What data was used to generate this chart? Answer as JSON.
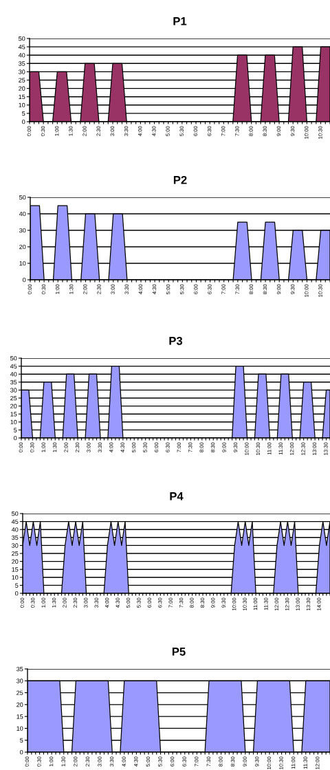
{
  "chart_data": [
    {
      "type": "area",
      "title": "P1",
      "grid": "y",
      "ylim": [
        0,
        50
      ],
      "yticks": [
        0,
        5,
        10,
        15,
        20,
        25,
        30,
        35,
        40,
        45,
        50
      ],
      "categories": [
        "0:00",
        null,
        null,
        "0:30",
        null,
        null,
        "1:00",
        null,
        null,
        "1:30",
        null,
        null,
        "2:00",
        null,
        null,
        "2:30",
        null,
        null,
        "3:00",
        null,
        null,
        "3:30",
        null,
        null,
        "4:00",
        null,
        null,
        "4:30",
        null,
        null,
        "5:00",
        null,
        null,
        "5:30",
        null,
        null,
        "6:00",
        null,
        null,
        "6:30",
        null,
        null,
        "7:00",
        null,
        null,
        "7:30",
        null,
        null,
        "8:00",
        null,
        null,
        "8:30",
        null,
        null,
        "9:00",
        null,
        null,
        "9:30",
        null,
        null,
        "10:00",
        null,
        null,
        "10:30",
        null,
        null
      ],
      "series": [
        {
          "color": "#993366",
          "values": [
            30,
            30,
            30,
            0,
            0,
            0,
            30,
            30,
            30,
            0,
            0,
            0,
            35,
            35,
            35,
            0,
            0,
            0,
            35,
            35,
            35,
            0,
            0,
            0,
            0,
            0,
            0,
            0,
            0,
            0,
            0,
            0,
            0,
            0,
            0,
            0,
            0,
            0,
            0,
            0,
            0,
            0,
            0,
            0,
            0,
            40,
            40,
            40,
            0,
            0,
            0,
            40,
            40,
            40,
            0,
            0,
            0,
            45,
            45,
            45,
            0,
            0,
            0,
            45,
            45,
            45
          ]
        }
      ]
    },
    {
      "type": "area",
      "title": "P2",
      "grid": "y",
      "ylim": [
        0,
        50
      ],
      "yticks": [
        0,
        10,
        20,
        30,
        40,
        50
      ],
      "categories": [
        "0:00",
        null,
        null,
        "0:30",
        null,
        null,
        "1:00",
        null,
        null,
        "1:30",
        null,
        null,
        "2:00",
        null,
        null,
        "2:30",
        null,
        null,
        "3:00",
        null,
        null,
        "3:30",
        null,
        null,
        "4:00",
        null,
        null,
        "4:30",
        null,
        null,
        "5:00",
        null,
        null,
        "5:30",
        null,
        null,
        "6:00",
        null,
        null,
        "6:30",
        null,
        null,
        "7:00",
        null,
        null,
        "7:30",
        null,
        null,
        "8:00",
        null,
        null,
        "8:30",
        null,
        null,
        "9:00",
        null,
        null,
        "9:30",
        null,
        null,
        "10:00",
        null,
        null,
        "10:30",
        null,
        null
      ],
      "series": [
        {
          "color": "#9999ff",
          "values": [
            45,
            45,
            45,
            0,
            0,
            0,
            45,
            45,
            45,
            0,
            0,
            0,
            40,
            40,
            40,
            0,
            0,
            0,
            40,
            40,
            40,
            0,
            0,
            0,
            0,
            0,
            0,
            0,
            0,
            0,
            0,
            0,
            0,
            0,
            0,
            0,
            0,
            0,
            0,
            0,
            0,
            0,
            0,
            0,
            0,
            35,
            35,
            35,
            0,
            0,
            0,
            35,
            35,
            35,
            0,
            0,
            0,
            30,
            30,
            30,
            0,
            0,
            0,
            30,
            30,
            30
          ]
        }
      ]
    },
    {
      "type": "area",
      "title": "P3",
      "grid": "y",
      "ylim": [
        0,
        50
      ],
      "yticks": [
        0,
        5,
        10,
        15,
        20,
        25,
        30,
        35,
        40,
        45,
        50
      ],
      "categories": [
        "0:00",
        null,
        null,
        "0:30",
        null,
        null,
        "1:00",
        null,
        null,
        "1:30",
        null,
        null,
        "2:00",
        null,
        null,
        "2:30",
        null,
        null,
        "3:00",
        null,
        null,
        "3:30",
        null,
        null,
        "4:00",
        null,
        null,
        "4:30",
        null,
        null,
        "5:00",
        null,
        null,
        "5:30",
        null,
        null,
        "6:00",
        null,
        null,
        "6:30",
        null,
        null,
        "7:00",
        null,
        null,
        "7:30",
        null,
        null,
        "8:00",
        null,
        null,
        "8:30",
        null,
        null,
        "9:00",
        null,
        null,
        "9:30",
        null,
        null,
        "10:00",
        null,
        null,
        "10:30",
        null,
        null,
        "11:00",
        null,
        null,
        "11:30",
        null,
        null,
        "12:00",
        null,
        null,
        "12:30",
        null,
        null,
        "13:00",
        null,
        null,
        "13:30",
        null
      ],
      "series": [
        {
          "color": "#9999ff",
          "values": [
            30,
            30,
            30,
            0,
            0,
            0,
            35,
            35,
            35,
            0,
            0,
            0,
            40,
            40,
            40,
            0,
            0,
            0,
            40,
            40,
            40,
            0,
            0,
            0,
            45,
            45,
            45,
            0,
            0,
            0,
            0,
            0,
            0,
            0,
            0,
            0,
            0,
            0,
            0,
            0,
            0,
            0,
            0,
            0,
            0,
            0,
            0,
            0,
            0,
            0,
            0,
            0,
            0,
            0,
            0,
            0,
            0,
            45,
            45,
            45,
            0,
            0,
            0,
            40,
            40,
            40,
            0,
            0,
            0,
            40,
            40,
            40,
            0,
            0,
            0,
            35,
            35,
            35,
            0,
            0,
            0,
            30,
            30
          ]
        }
      ]
    },
    {
      "type": "area",
      "title": "P4",
      "grid": "y",
      "ylim": [
        0,
        50
      ],
      "yticks": [
        0,
        5,
        10,
        15,
        20,
        25,
        30,
        35,
        40,
        45,
        50
      ],
      "categories": [
        "0:00",
        null,
        null,
        "0:30",
        null,
        null,
        "1:00",
        null,
        null,
        "1:30",
        null,
        null,
        "2:00",
        null,
        null,
        "2:30",
        null,
        null,
        "3:00",
        null,
        null,
        "3:30",
        null,
        null,
        "4:00",
        null,
        null,
        "4:30",
        null,
        null,
        "5:00",
        null,
        null,
        "5:30",
        null,
        null,
        "6:00",
        null,
        null,
        "6:30",
        null,
        null,
        "7:00",
        null,
        null,
        "7:30",
        null,
        null,
        "8:00",
        null,
        null,
        "8:30",
        null,
        null,
        "9:00",
        null,
        null,
        "9:30",
        null,
        null,
        "10:00",
        null,
        null,
        "10:30",
        null,
        null,
        "11:00",
        null,
        null,
        "11:30",
        null,
        null,
        "12:00",
        null,
        null,
        "12:30",
        null,
        null,
        "13:00",
        null,
        null,
        "13:30",
        null,
        null,
        "14:00",
        null,
        null,
        null
      ],
      "series": [
        {
          "color": "#9999ff",
          "values": [
            30,
            45,
            30,
            45,
            30,
            45,
            0,
            0,
            0,
            0,
            0,
            0,
            30,
            45,
            30,
            45,
            30,
            45,
            0,
            0,
            0,
            0,
            0,
            0,
            30,
            45,
            30,
            45,
            30,
            45,
            0,
            0,
            0,
            0,
            0,
            0,
            0,
            0,
            0,
            0,
            0,
            0,
            0,
            0,
            0,
            0,
            0,
            0,
            0,
            0,
            0,
            0,
            0,
            0,
            0,
            0,
            0,
            0,
            0,
            0,
            30,
            45,
            30,
            45,
            30,
            45,
            0,
            0,
            0,
            0,
            0,
            0,
            30,
            45,
            30,
            45,
            30,
            45,
            0,
            0,
            0,
            0,
            0,
            0,
            30,
            45,
            30,
            45
          ]
        }
      ]
    },
    {
      "type": "area",
      "title": "P5",
      "grid": "y",
      "ylim": [
        0,
        35
      ],
      "yticks": [
        0,
        5,
        10,
        15,
        20,
        25,
        30,
        35
      ],
      "categories": [
        "0:00",
        null,
        null,
        "0:30",
        null,
        null,
        "1:00",
        null,
        null,
        "1:30",
        null,
        null,
        "2:00",
        null,
        null,
        "2:30",
        null,
        null,
        "3:00",
        null,
        null,
        "3:30",
        null,
        null,
        "4:00",
        null,
        null,
        "4:30",
        null,
        null,
        "5:00",
        null,
        null,
        "5:30",
        null,
        null,
        "6:00",
        null,
        null,
        "6:30",
        null,
        null,
        "7:00",
        null,
        null,
        "7:30",
        null,
        null,
        "8:00",
        null,
        null,
        "8:30",
        null,
        null,
        "9:00",
        null,
        null,
        "9:30",
        null,
        null,
        "10:00",
        null,
        null,
        "10:30",
        null,
        null,
        "11:00",
        null,
        null,
        "11:30",
        null,
        null,
        "12:00",
        null,
        null,
        null
      ],
      "series": [
        {
          "color": "#9999ff",
          "values": [
            30,
            30,
            30,
            30,
            30,
            30,
            30,
            30,
            30,
            0,
            0,
            0,
            30,
            30,
            30,
            30,
            30,
            30,
            30,
            30,
            30,
            0,
            0,
            0,
            30,
            30,
            30,
            30,
            30,
            30,
            30,
            30,
            30,
            0,
            0,
            0,
            0,
            0,
            0,
            0,
            0,
            0,
            0,
            0,
            0,
            30,
            30,
            30,
            30,
            30,
            30,
            30,
            30,
            30,
            0,
            0,
            0,
            30,
            30,
            30,
            30,
            30,
            30,
            30,
            30,
            30,
            0,
            0,
            0,
            30,
            30,
            30,
            30,
            30,
            30,
            30
          ]
        }
      ]
    }
  ]
}
